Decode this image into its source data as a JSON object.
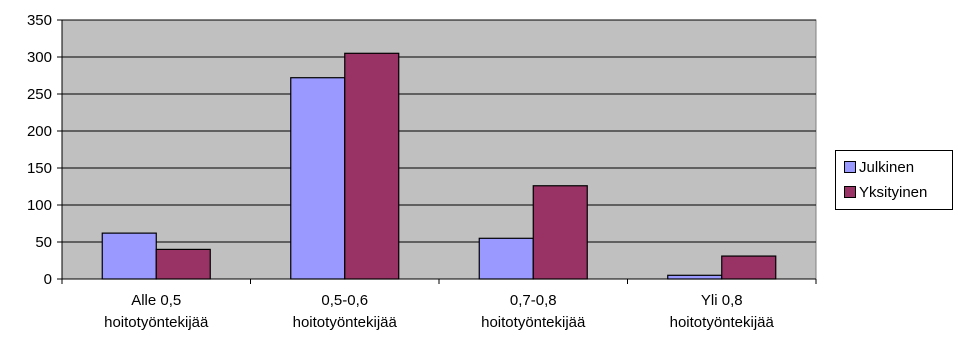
{
  "chart_data": {
    "type": "bar",
    "categories": [
      [
        "Alle 0,5",
        "hoitotyöntekijää"
      ],
      [
        "0,5-0,6",
        "hoitotyöntekijää"
      ],
      [
        "0,7-0,8",
        "hoitotyöntekijää"
      ],
      [
        "Yli 0,8",
        "hoitotyöntekijää"
      ]
    ],
    "series": [
      {
        "name": "Julkinen",
        "values": [
          62,
          272,
          55,
          5
        ],
        "color": "#9999ff"
      },
      {
        "name": "Yksityinen",
        "values": [
          40,
          305,
          126,
          31
        ],
        "color": "#993366"
      }
    ],
    "ylim": [
      0,
      350
    ],
    "yticks": [
      0,
      50,
      100,
      150,
      200,
      250,
      300,
      350
    ],
    "grid": true,
    "plot_background": "#c0c0c0",
    "legend_position": "right"
  }
}
